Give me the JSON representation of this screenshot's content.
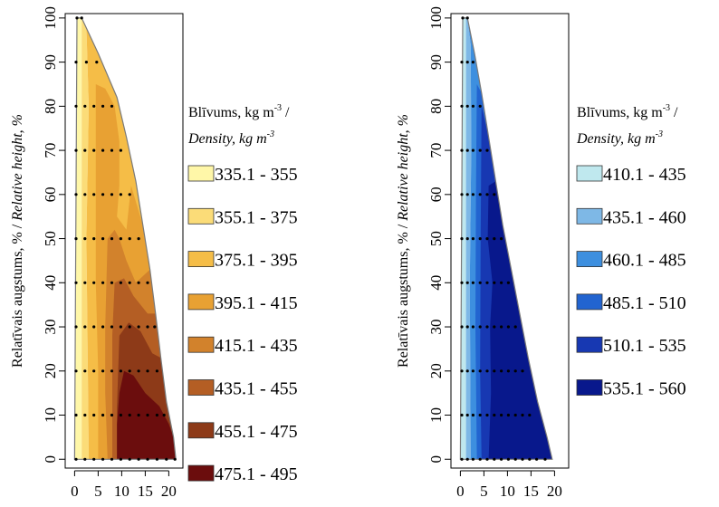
{
  "chart_data": [
    {
      "type": "heatmap",
      "ylabel_parts": [
        "Relatīvais augstums, % / ",
        "Relative height, %"
      ],
      "yticks": [
        0,
        10,
        20,
        30,
        40,
        50,
        60,
        70,
        80,
        90,
        100
      ],
      "xticks": [
        0,
        5,
        10,
        15,
        20
      ],
      "xlim": [
        -2,
        23
      ],
      "ylim": [
        -2,
        101
      ],
      "legend_title_line1": "Blīvums, kg m",
      "legend_title_sup1": "-3",
      "legend_title_slash": " /",
      "legend_title_line2": "Density, kg m",
      "legend_title_sup2": "-3",
      "outline": [
        [
          0.5,
          100
        ],
        [
          1.5,
          100
        ],
        [
          5,
          92
        ],
        [
          9,
          82
        ],
        [
          11,
          73
        ],
        [
          13,
          63
        ],
        [
          14.5,
          53
        ],
        [
          16,
          43
        ],
        [
          17.2,
          33
        ],
        [
          18.3,
          23
        ],
        [
          19.5,
          13
        ],
        [
          21,
          5
        ],
        [
          21.5,
          0
        ],
        [
          0,
          0
        ]
      ],
      "sample_rows": [
        {
          "y": 100,
          "xs": [
            0.5,
            1.5
          ]
        },
        {
          "y": 90,
          "xs": [
            0.3,
            2.5,
            4.7
          ]
        },
        {
          "y": 80,
          "xs": [
            0.3,
            2.2,
            4.1,
            6,
            7.9
          ]
        },
        {
          "y": 70,
          "xs": [
            0.3,
            2.2,
            4.1,
            6,
            7.9,
            9.8
          ]
        },
        {
          "y": 60,
          "xs": [
            0.3,
            2.2,
            4.1,
            6,
            7.9,
            9.8,
            11.7
          ]
        },
        {
          "y": 50,
          "xs": [
            0.3,
            2.2,
            4.1,
            6,
            7.9,
            9.8,
            11.7,
            13.6
          ]
        },
        {
          "y": 40,
          "xs": [
            0.3,
            2.2,
            4.1,
            6,
            7.9,
            9.8,
            11.7,
            13.6,
            15.5
          ]
        },
        {
          "y": 30,
          "xs": [
            0.3,
            2.2,
            4.1,
            6,
            7.9,
            9.8,
            11.7,
            13.6,
            15.5,
            17
          ]
        },
        {
          "y": 20,
          "xs": [
            0.3,
            2.2,
            4.1,
            6,
            7.9,
            9.8,
            11.7,
            13.6,
            15.5,
            17.5
          ]
        },
        {
          "y": 10,
          "xs": [
            0.3,
            2.2,
            4.1,
            6,
            7.9,
            9.8,
            11.7,
            13.6,
            15.5,
            17.5,
            19
          ]
        },
        {
          "y": 0,
          "xs": [
            0.3,
            2.2,
            4.1,
            6,
            7.9,
            9.8,
            11.7,
            13.6,
            15.5,
            17.5,
            19.5,
            21.3
          ]
        }
      ],
      "bands": [
        {
          "label": "335.1 - 355",
          "color": "#FFF7A8",
          "poly": [
            [
              0,
              0
            ],
            [
              0,
              100
            ],
            [
              1.5,
              100
            ],
            [
              1.5,
              0
            ]
          ]
        },
        {
          "label": "355.1 - 375",
          "color": "#FBDC78",
          "poly": [
            [
              1.5,
              100
            ],
            [
              2.5,
              98
            ],
            [
              3,
              80
            ],
            [
              2.5,
              50
            ],
            [
              2.8,
              20
            ],
            [
              3,
              0
            ],
            [
              1.5,
              0
            ]
          ]
        },
        {
          "label": "375.1 - 395",
          "color": "#F5BD47",
          "poly": [
            [
              2.5,
              98
            ],
            [
              5,
              92
            ],
            [
              9,
              82
            ],
            [
              11,
              73
            ],
            [
              13,
              63
            ],
            [
              14.5,
              53
            ],
            [
              16,
              43
            ],
            [
              17.2,
              33
            ],
            [
              18.3,
              23
            ],
            [
              19.5,
              13
            ],
            [
              21,
              5
            ],
            [
              21.5,
              0
            ],
            [
              3,
              0
            ],
            [
              2.8,
              20
            ],
            [
              2.5,
              50
            ],
            [
              3,
              80
            ]
          ]
        },
        {
          "label": "395.1 - 415",
          "color": "#E8A133",
          "poly": [
            [
              4.5,
              85
            ],
            [
              6.5,
              84
            ],
            [
              8.5,
              80
            ],
            [
              9.5,
              72
            ],
            [
              9.5,
              62
            ],
            [
              9,
              55
            ],
            [
              11,
              52
            ],
            [
              12,
              62
            ],
            [
              14.5,
              53
            ],
            [
              16,
              43
            ],
            [
              17.2,
              33
            ],
            [
              18.3,
              23
            ],
            [
              19.5,
              13
            ],
            [
              21,
              5
            ],
            [
              21.5,
              0
            ],
            [
              5,
              0
            ],
            [
              5,
              20
            ],
            [
              4.5,
              40
            ],
            [
              4.5,
              60
            ]
          ]
        },
        {
          "label": "415.1 - 435",
          "color": "#D2822C",
          "poly": [
            [
              7,
              50
            ],
            [
              8.5,
              52
            ],
            [
              9.5,
              50
            ],
            [
              11,
              45
            ],
            [
              13,
              40
            ],
            [
              16,
              43
            ],
            [
              17.2,
              33
            ],
            [
              18.3,
              23
            ],
            [
              19.5,
              13
            ],
            [
              21,
              5
            ],
            [
              21.5,
              0
            ],
            [
              7,
              0
            ],
            [
              6.5,
              15
            ],
            [
              6.5,
              30
            ]
          ]
        },
        {
          "label": "435.1 - 455",
          "color": "#B45E24",
          "poly": [
            [
              8.5,
              40
            ],
            [
              10.5,
              41
            ],
            [
              12.5,
              37
            ],
            [
              15.5,
              33
            ],
            [
              17.2,
              33
            ],
            [
              18.3,
              23
            ],
            [
              19.5,
              13
            ],
            [
              21,
              5
            ],
            [
              21.5,
              0
            ],
            [
              8,
              0
            ],
            [
              8,
              15
            ],
            [
              8,
              28
            ]
          ]
        },
        {
          "label": "455.1 - 475",
          "color": "#8D3A18",
          "poly": [
            [
              9.5,
              28
            ],
            [
              11.5,
              31
            ],
            [
              14,
              29
            ],
            [
              16.5,
              24
            ],
            [
              18.3,
              23
            ],
            [
              19.5,
              13
            ],
            [
              21,
              5
            ],
            [
              21.5,
              0
            ],
            [
              9,
              0
            ],
            [
              9,
              12
            ]
          ]
        },
        {
          "label": "475.1 - 495",
          "color": "#6B0D0D",
          "poly": [
            [
              9.5,
              15
            ],
            [
              10.5,
              20
            ],
            [
              12.5,
              19
            ],
            [
              15,
              15
            ],
            [
              18,
              12
            ],
            [
              20,
              8
            ],
            [
              21,
              5
            ],
            [
              21.5,
              0
            ],
            [
              9,
              0
            ],
            [
              9,
              8
            ]
          ]
        }
      ]
    },
    {
      "type": "heatmap",
      "ylabel_parts": [
        "Relatīvais augstums, % / ",
        "Relative height, %"
      ],
      "yticks": [
        0,
        10,
        20,
        30,
        40,
        50,
        60,
        70,
        80,
        90,
        100
      ],
      "xticks": [
        0,
        5,
        10,
        15,
        20
      ],
      "xlim": [
        -2,
        23
      ],
      "ylim": [
        -2,
        101
      ],
      "legend_title_line1": "Blīvums, kg m",
      "legend_title_sup1": "-3",
      "legend_title_slash": " /",
      "legend_title_line2": "Density, kg m",
      "legend_title_sup2": "-3",
      "outline": [
        [
          0.5,
          100
        ],
        [
          1.5,
          100
        ],
        [
          3,
          92
        ],
        [
          4.5,
          83
        ],
        [
          6,
          73
        ],
        [
          7.5,
          63
        ],
        [
          9,
          53
        ],
        [
          10.8,
          43
        ],
        [
          12.6,
          33
        ],
        [
          14.4,
          23
        ],
        [
          16.4,
          13
        ],
        [
          18.4,
          5
        ],
        [
          19.5,
          0
        ],
        [
          0,
          0
        ]
      ],
      "sample_rows": [
        {
          "y": 100,
          "xs": [
            0.5,
            1.5
          ]
        },
        {
          "y": 90,
          "xs": [
            0.3,
            1.5,
            2.7
          ]
        },
        {
          "y": 80,
          "xs": [
            0.3,
            1.5,
            2.7,
            4.2
          ]
        },
        {
          "y": 70,
          "xs": [
            0.3,
            1.5,
            2.7,
            4.2,
            5.7
          ]
        },
        {
          "y": 60,
          "xs": [
            0.3,
            1.5,
            2.7,
            4.2,
            5.7,
            7.2
          ]
        },
        {
          "y": 50,
          "xs": [
            0.3,
            1.5,
            2.7,
            4.2,
            5.7,
            7.2,
            8.7
          ]
        },
        {
          "y": 40,
          "xs": [
            0.3,
            1.5,
            2.7,
            4.2,
            5.7,
            7.2,
            8.7,
            10.2
          ]
        },
        {
          "y": 30,
          "xs": [
            0.3,
            1.5,
            2.7,
            4.2,
            5.7,
            7.2,
            8.7,
            10.2,
            11.7
          ]
        },
        {
          "y": 20,
          "xs": [
            0.3,
            1.5,
            2.7,
            4.2,
            5.7,
            7.2,
            8.7,
            10.2,
            11.7,
            13.2
          ]
        },
        {
          "y": 10,
          "xs": [
            0.3,
            1.5,
            2.7,
            4.2,
            5.7,
            7.2,
            8.7,
            10.2,
            11.7,
            13.2,
            14.7
          ]
        },
        {
          "y": 0,
          "xs": [
            0.3,
            1.5,
            2.7,
            4.2,
            5.7,
            7.2,
            8.7,
            10.2,
            11.7,
            13.2,
            14.7,
            16.2,
            18
          ]
        }
      ],
      "bands": [
        {
          "label": "410.1 - 435",
          "color": "#BFE8EE",
          "poly": [
            [
              0,
              0
            ],
            [
              0,
              100
            ],
            [
              1.2,
              100
            ],
            [
              1.2,
              0
            ]
          ]
        },
        {
          "label": "435.1 - 460",
          "color": "#7EB8E6",
          "poly": [
            [
              1.2,
              100
            ],
            [
              1.5,
              100
            ],
            [
              2.2,
              94
            ],
            [
              2.3,
              70
            ],
            [
              2,
              40
            ],
            [
              2.2,
              0
            ],
            [
              1.2,
              0
            ]
          ]
        },
        {
          "label": "460.1 - 485",
          "color": "#3D8FDF",
          "poly": [
            [
              1.5,
              100
            ],
            [
              3,
              92
            ],
            [
              4.5,
              83
            ],
            [
              6,
              73
            ],
            [
              7.5,
              63
            ],
            [
              9,
              53
            ],
            [
              10.8,
              43
            ],
            [
              12.6,
              33
            ],
            [
              14.4,
              23
            ],
            [
              16.4,
              13
            ],
            [
              18.4,
              5
            ],
            [
              19.5,
              0
            ],
            [
              2.2,
              0
            ],
            [
              2,
              40
            ],
            [
              2.3,
              70
            ],
            [
              2.2,
              94
            ]
          ]
        },
        {
          "label": "485.1 - 510",
          "color": "#2264D0",
          "poly": [
            [
              3.5,
              85
            ],
            [
              4.5,
              83
            ],
            [
              6,
              73
            ],
            [
              7.5,
              63
            ],
            [
              9,
              53
            ],
            [
              10.8,
              43
            ],
            [
              12.6,
              33
            ],
            [
              14.4,
              23
            ],
            [
              16.4,
              13
            ],
            [
              18.4,
              5
            ],
            [
              19.5,
              0
            ],
            [
              3.5,
              0
            ],
            [
              3.2,
              30
            ],
            [
              3.3,
              60
            ]
          ]
        },
        {
          "label": "510.1 - 535",
          "color": "#1738B2",
          "poly": [
            [
              4.5,
              80
            ],
            [
              6,
              73
            ],
            [
              7.5,
              63
            ],
            [
              9,
              53
            ],
            [
              10.8,
              43
            ],
            [
              12.6,
              33
            ],
            [
              14.4,
              23
            ],
            [
              16.4,
              13
            ],
            [
              18.4,
              5
            ],
            [
              19.5,
              0
            ],
            [
              4.5,
              0
            ],
            [
              4.2,
              20
            ],
            [
              4.3,
              50
            ]
          ]
        },
        {
          "label": "535.1 - 560",
          "color": "#08188C",
          "poly": [
            [
              6,
              62
            ],
            [
              7.5,
              63
            ],
            [
              9,
              53
            ],
            [
              10.8,
              43
            ],
            [
              12.6,
              33
            ],
            [
              14.4,
              23
            ],
            [
              16.4,
              13
            ],
            [
              18.4,
              5
            ],
            [
              19.5,
              0
            ],
            [
              6,
              0
            ],
            [
              6.5,
              15
            ],
            [
              6.3,
              30
            ],
            [
              6.8,
              40
            ],
            [
              5.8,
              50
            ]
          ]
        }
      ]
    }
  ]
}
